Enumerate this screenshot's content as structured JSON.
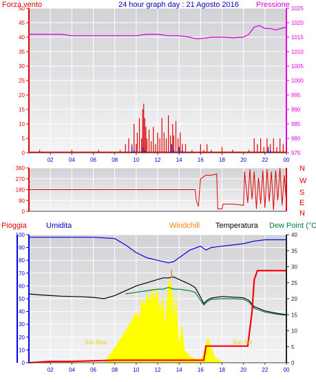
{
  "colors": {
    "panel_bg_top": "#d4d4d6",
    "panel_bg_bottom": "#f4f4f6",
    "wind": "#e00000",
    "gust_blue": "#0000e0",
    "pressure": "#e000e0",
    "wind_dir": "#e00000",
    "humidity": "#0000e0",
    "temperature": "#000000",
    "dew_point": "#008040",
    "windchill": "#ff8000",
    "rain": "#ff0000",
    "solar": "#ffff00",
    "axis_left_bottom": "#0000e0",
    "axis_red": "#e00000",
    "axis_magenta": "#e000e0",
    "grid": "#ffffff"
  },
  "panels": {
    "top": {
      "label_left": "Forza vento",
      "title": "24 hour graph day : 21 Agosto 2016",
      "label_right": "Pressione"
    },
    "middle": {
      "compass": [
        "N",
        "W",
        "S",
        "E",
        "N"
      ]
    },
    "bottom": {
      "legend": {
        "rain": "Pioggia",
        "humidity": "Umidita",
        "windchill": "Windchill",
        "temperature": "Temperatura",
        "dew_point": "Dew Point (°C"
      },
      "sunrise": "Sun Rise",
      "sunset": "Sun Set"
    }
  },
  "chart_data": [
    {
      "type": "line",
      "name": "wind_pressure",
      "x_ticks": [
        "02",
        "04",
        "06",
        "08",
        "10",
        "12",
        "14",
        "16",
        "18",
        "20",
        "22",
        "00"
      ],
      "xlim": [
        0,
        24
      ],
      "ylim_left": [
        0,
        50
      ],
      "yticks_left": [
        "0",
        "5",
        "10",
        "15",
        "20",
        "25",
        "30",
        "35",
        "40",
        "45",
        "50"
      ],
      "ylim_right": [
        975,
        1025
      ],
      "yticks_right": [
        "975",
        "980",
        "985",
        "990",
        "995",
        "1000",
        "1005",
        "1010",
        "1015",
        "1020",
        "1025"
      ],
      "series": [
        {
          "name": "Pressione",
          "x": [
            0,
            1,
            2,
            3,
            4,
            5,
            6,
            7,
            8,
            9,
            10,
            11,
            12,
            13,
            14,
            15,
            15.5,
            16,
            17,
            18,
            19,
            20,
            20.5,
            21,
            21.5,
            22,
            22.5,
            23,
            24
          ],
          "y": [
            1016,
            1016,
            1016,
            1016,
            1015.5,
            1015.5,
            1015.5,
            1015.5,
            1015.5,
            1015.5,
            1015.5,
            1016,
            1016,
            1015.5,
            1015.5,
            1015,
            1014.5,
            1014.5,
            1015,
            1015,
            1014.8,
            1015,
            1016,
            1018.5,
            1019,
            1018,
            1018,
            1017.5,
            1018.5
          ]
        },
        {
          "name": "Forza vento",
          "x": [
            1,
            4,
            6.5,
            8.5,
            9,
            9.3,
            9.6,
            9.8,
            10,
            10.1,
            10.3,
            10.5,
            10.6,
            10.7,
            10.8,
            10.9,
            11,
            11.2,
            11.4,
            11.6,
            11.8,
            12,
            12.2,
            12.4,
            12.6,
            12.8,
            13,
            13.2,
            13.4,
            13.5,
            13.7,
            13.9,
            14.1,
            14.3,
            14.6,
            15.2,
            16,
            16.3,
            16.6,
            17,
            18,
            19,
            20.5,
            21,
            21.3,
            21.6,
            21.9,
            22.2,
            22.5,
            22.8,
            23.1,
            23.4,
            23.7,
            24
          ],
          "y": [
            1,
            1,
            1,
            1,
            3,
            5,
            3,
            10,
            3,
            7,
            12,
            5,
            15,
            17,
            12,
            9,
            5,
            8,
            4,
            9,
            3,
            7,
            5,
            12,
            7,
            5,
            13,
            6,
            10,
            6,
            11,
            5,
            7,
            3,
            3,
            1,
            3,
            1,
            3,
            1,
            2,
            1,
            1,
            5,
            3,
            5,
            2,
            5,
            3,
            5,
            2,
            5,
            3,
            2
          ]
        },
        {
          "x": [
            9.6,
            9.8,
            10.6,
            10.8,
            13.3,
            13.5,
            14,
            14.3,
            22.3,
            22.5
          ],
          "y": [
            2,
            1,
            2,
            1,
            3,
            1,
            2,
            1,
            2,
            1
          ]
        }
      ]
    },
    {
      "type": "line",
      "name": "wind_direction",
      "x_ticks": [],
      "xlim": [
        0,
        24
      ],
      "ylim": [
        0,
        360
      ],
      "yticks": [
        "0",
        "90",
        "180",
        "270",
        "360"
      ],
      "series": [
        {
          "x": [
            0,
            1,
            2,
            3,
            4,
            5,
            6,
            7,
            8,
            9,
            10,
            11,
            12,
            13,
            14,
            15,
            15.5,
            15.6,
            15.8,
            16,
            16.5,
            17,
            17.5,
            17.6,
            18,
            18.1,
            19,
            20,
            20.1,
            20.4,
            20.6,
            20.8,
            21,
            21.2,
            21.4,
            21.6,
            21.8,
            22,
            22.2,
            22.4,
            22.6,
            22.8,
            23,
            23.2,
            23.4,
            23.6,
            23.8,
            24
          ],
          "y": [
            180,
            180,
            180,
            180,
            180,
            180,
            180,
            180,
            180,
            180,
            180,
            180,
            180,
            180,
            180,
            180,
            180,
            90,
            40,
            270,
            300,
            300,
            310,
            20,
            20,
            60,
            60,
            50,
            330,
            70,
            350,
            100,
            330,
            20,
            280,
            60,
            340,
            30,
            350,
            80,
            330,
            10,
            340,
            90,
            360,
            50,
            300,
            70
          ]
        }
      ]
    },
    {
      "type": "line",
      "name": "humidity_temperature",
      "x_ticks": [
        "02",
        "04",
        "06",
        "08",
        "10",
        "12",
        "14",
        "16",
        "18",
        "20",
        "22",
        "00"
      ],
      "xlim": [
        0,
        24
      ],
      "ylim_left": [
        0,
        100
      ],
      "yticks_left": [
        "0",
        "10",
        "20",
        "30",
        "40",
        "50",
        "60",
        "70",
        "80",
        "90",
        "100"
      ],
      "ylim_right": [
        0,
        40
      ],
      "yticks_right": [
        "0",
        "5",
        "10",
        "15",
        "20",
        "25",
        "30",
        "35",
        "40"
      ],
      "series": [
        {
          "name": "Umidita",
          "x": [
            0,
            2,
            4,
            6,
            8,
            9,
            10,
            11,
            12,
            13,
            13.5,
            14,
            15,
            16,
            16.5,
            17,
            18,
            19,
            20,
            21,
            22,
            23,
            24
          ],
          "y": [
            98,
            98,
            98,
            98,
            97,
            92,
            86,
            82,
            80,
            78,
            79,
            82,
            88,
            91,
            88,
            90,
            91,
            92,
            93,
            95,
            96,
            96,
            96
          ]
        },
        {
          "name": "Temperatura",
          "x": [
            0,
            1,
            2,
            3,
            4,
            5,
            6,
            7,
            8,
            9,
            10,
            11,
            12,
            12.5,
            13,
            13.5,
            14,
            15,
            15.5,
            16,
            16.3,
            16.6,
            17,
            18,
            19,
            20,
            20.5,
            21,
            22,
            23,
            24
          ],
          "y": [
            21.5,
            21.2,
            21,
            20.8,
            20.7,
            20.6,
            20.4,
            20,
            21,
            22.5,
            24,
            25,
            26,
            26.5,
            26.5,
            26.8,
            26,
            24.5,
            23.5,
            20.5,
            18.5,
            19.5,
            20.2,
            20.7,
            20.5,
            20.3,
            19.5,
            17.5,
            16.2,
            15.5,
            15
          ]
        },
        {
          "name": "Dew Point",
          "x": [
            0,
            1,
            2,
            3,
            4,
            5,
            6,
            7,
            8,
            9,
            10,
            11,
            12,
            12.5,
            13,
            13.5,
            14,
            15,
            15.5,
            16,
            16.3,
            16.6,
            17,
            18,
            19,
            20,
            20.5,
            21,
            22,
            23,
            24
          ],
          "y": [
            null,
            null,
            null,
            null,
            null,
            null,
            null,
            null,
            null,
            21.5,
            22,
            22.5,
            23,
            23,
            23.5,
            23,
            23,
            22.5,
            22,
            19.5,
            18,
            19,
            19.8,
            20,
            20,
            19.8,
            19,
            17,
            15.8,
            15.2,
            14.8
          ]
        },
        {
          "name": "Windchill",
          "x": [
            13.3,
            13.3
          ],
          "y": [
            26.5,
            29
          ]
        },
        {
          "name": "Pioggia",
          "x": [
            0,
            2,
            4,
            6,
            8,
            10,
            12,
            14,
            16,
            16.3,
            16.5,
            17,
            18,
            19,
            20,
            20.4,
            20.8,
            21,
            21.3,
            21.6,
            22,
            23,
            24
          ],
          "y": [
            0,
            1,
            1,
            1.5,
            2,
            2,
            2,
            2,
            2,
            2,
            13,
            13,
            13,
            13,
            13,
            13,
            40,
            65,
            72,
            72,
            72,
            72,
            72
          ]
        },
        {
          "name": "Solar",
          "x": [
            0,
            6.8,
            7,
            8,
            9,
            9.5,
            10,
            10.3,
            10.5,
            10.8,
            11,
            11.3,
            11.5,
            11.7,
            12,
            12.2,
            12.5,
            12.7,
            13,
            13.3,
            13.5,
            13.7,
            14,
            14.3,
            14.5,
            15,
            15.5,
            16,
            16.3,
            16.5,
            16.7,
            17,
            17.3,
            17.5,
            17.8,
            18,
            18.5,
            24
          ],
          "y": [
            0,
            0,
            0,
            12,
            25,
            32,
            40,
            35,
            50,
            45,
            55,
            48,
            60,
            50,
            58,
            40,
            52,
            30,
            65,
            62,
            35,
            55,
            15,
            30,
            10,
            5,
            3,
            2,
            8,
            15,
            20,
            12,
            5,
            3,
            2,
            0,
            0,
            0
          ]
        }
      ]
    }
  ]
}
